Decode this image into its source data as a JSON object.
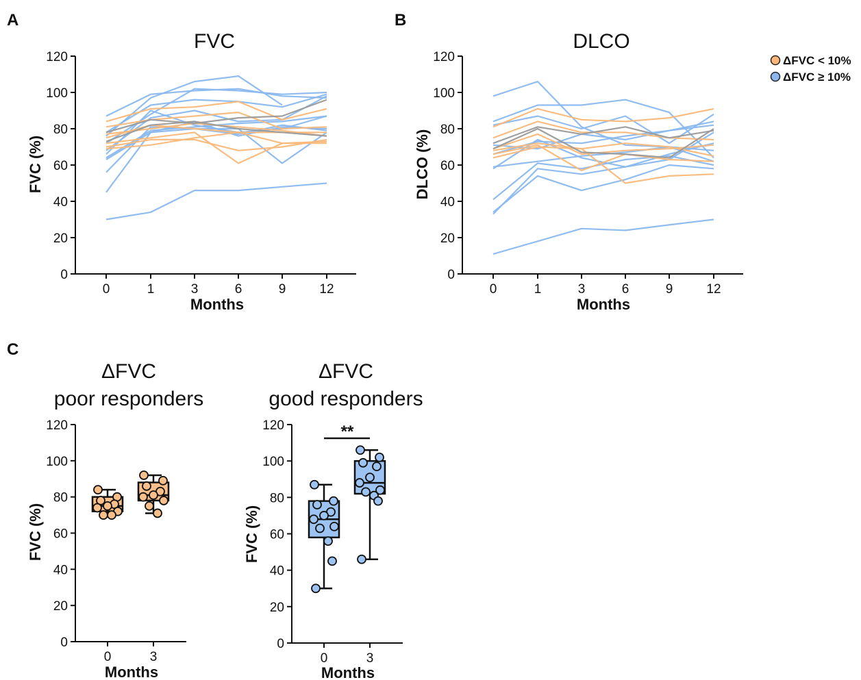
{
  "colors": {
    "poor": "#f9b87a",
    "good": "#8ab8ee",
    "grey": "#9a9a9a",
    "poor_fill": "#f9bf8a",
    "good_fill": "#9cc3f2"
  },
  "legend": [
    {
      "label": "ΔFVC < 10%",
      "color": "#f9b87a"
    },
    {
      "label": "ΔFVC ≥ 10%",
      "color": "#8ab8ee"
    }
  ],
  "chart_data": [
    {
      "panel": "A",
      "type": "line",
      "title": "FVC",
      "xlabel": "Months",
      "ylabel": "FVC (%)",
      "x": [
        "0",
        "1",
        "3",
        "6",
        "9",
        "12"
      ],
      "ylim": [
        0,
        120
      ],
      "yticks": [
        "0",
        "20",
        "40",
        "60",
        "80",
        "100",
        "120"
      ],
      "series": [
        {
          "group": "good",
          "values": [
            87,
            99,
            101,
            102,
            98,
            97
          ]
        },
        {
          "group": "good",
          "values": [
            78,
            93,
            96,
            95,
            92,
            99
          ]
        },
        {
          "group": "good",
          "values": [
            76,
            97,
            106,
            109,
            93,
            null
          ]
        },
        {
          "group": "good",
          "values": [
            72,
            88,
            102,
            101,
            99,
            100
          ]
        },
        {
          "group": "good",
          "values": [
            68,
            86,
            90,
            84,
            85,
            98
          ]
        },
        {
          "group": "good",
          "values": [
            66,
            90,
            82,
            78,
            80,
            87
          ]
        },
        {
          "group": "good",
          "values": [
            64,
            79,
            81,
            83,
            84,
            87
          ]
        },
        {
          "group": "good",
          "values": [
            63,
            78,
            80,
            80,
            61,
            78
          ]
        },
        {
          "group": "good",
          "values": [
            56,
            81,
            80,
            77,
            82,
            79
          ]
        },
        {
          "group": "good",
          "values": [
            45,
            78,
            84,
            76,
            81,
            80
          ]
        },
        {
          "group": "good",
          "values": [
            30,
            34,
            46,
            46,
            48,
            50
          ]
        },
        {
          "group": "poor",
          "values": [
            84,
            91,
            92,
            95,
            85,
            91
          ]
        },
        {
          "group": "poor",
          "values": [
            81,
            85,
            87,
            89,
            80,
            81
          ]
        },
        {
          "group": "poor",
          "values": [
            77,
            80,
            83,
            81,
            79,
            76
          ]
        },
        {
          "group": "poor",
          "values": [
            75,
            82,
            80,
            78,
            78,
            78
          ]
        },
        {
          "group": "poor",
          "values": [
            72,
            75,
            78,
            61,
            72,
            72
          ]
        },
        {
          "group": "poor",
          "values": [
            70,
            74,
            74,
            68,
            70,
            74
          ]
        },
        {
          "group": "poor",
          "values": [
            69,
            71,
            75,
            78,
            72,
            73
          ]
        },
        {
          "group": "grey",
          "values": [
            78,
            85,
            83,
            86,
            87,
            96
          ]
        },
        {
          "group": "grey",
          "values": [
            73,
            82,
            84,
            80,
            78,
            76
          ]
        }
      ]
    },
    {
      "panel": "B",
      "type": "line",
      "title": "DLCO",
      "xlabel": "Months",
      "ylabel": "DLCO (%)",
      "x": [
        "0",
        "1",
        "3",
        "6",
        "9",
        "12"
      ],
      "ylim": [
        0,
        120
      ],
      "yticks": [
        "0",
        "20",
        "40",
        "60",
        "80",
        "100",
        "120"
      ],
      "series": [
        {
          "group": "good",
          "values": [
            98,
            106,
            81,
            71,
            70,
            62
          ]
        },
        {
          "group": "good",
          "values": [
            84,
            93,
            93,
            96,
            89,
            64
          ]
        },
        {
          "group": "good",
          "values": [
            82,
            87,
            80,
            87,
            72,
            88
          ]
        },
        {
          "group": "good",
          "values": [
            71,
            69,
            77,
            74,
            79,
            82
          ]
        },
        {
          "group": "good",
          "values": [
            66,
            73,
            72,
            76,
            79,
            84
          ]
        },
        {
          "group": "good",
          "values": [
            59,
            62,
            65,
            67,
            70,
            68
          ]
        },
        {
          "group": "good",
          "values": [
            58,
            74,
            64,
            59,
            66,
            72
          ]
        },
        {
          "group": "good",
          "values": [
            41,
            61,
            58,
            63,
            65,
            60
          ]
        },
        {
          "group": "good",
          "values": [
            34,
            54,
            46,
            52,
            60,
            58
          ]
        },
        {
          "group": "good",
          "values": [
            33,
            58,
            55,
            59,
            63,
            78
          ]
        },
        {
          "group": "good",
          "values": [
            11,
            18,
            25,
            24,
            27,
            30
          ]
        },
        {
          "group": "poor",
          "values": [
            81,
            91,
            85,
            84,
            86,
            91
          ]
        },
        {
          "group": "poor",
          "values": [
            75,
            84,
            78,
            78,
            75,
            74
          ]
        },
        {
          "group": "poor",
          "values": [
            69,
            77,
            66,
            68,
            69,
            71
          ]
        },
        {
          "group": "poor",
          "values": [
            68,
            72,
            69,
            72,
            70,
            65
          ]
        },
        {
          "group": "poor",
          "values": [
            66,
            71,
            57,
            66,
            63,
            62
          ]
        },
        {
          "group": "poor",
          "values": [
            64,
            70,
            69,
            50,
            54,
            55
          ]
        },
        {
          "group": "grey",
          "values": [
            72,
            81,
            77,
            81,
            75,
            79
          ]
        },
        {
          "group": "grey",
          "values": [
            69,
            80,
            67,
            66,
            64,
            80
          ]
        }
      ]
    },
    {
      "panel": "C",
      "type": "box",
      "title": [
        "ΔFVC",
        "poor responders"
      ],
      "xlabel": "Months",
      "ylabel": "FVC (%)",
      "categories": [
        "0",
        "3"
      ],
      "ylim": [
        0,
        120
      ],
      "yticks": [
        "0",
        "20",
        "40",
        "60",
        "80",
        "100",
        "120"
      ],
      "group": "poor",
      "boxes": [
        {
          "min": 70,
          "q1": 72,
          "median": 75,
          "q3": 80,
          "max": 84,
          "points": [
            84,
            80,
            78,
            76,
            75,
            74,
            72,
            70,
            70
          ]
        },
        {
          "min": 71,
          "q1": 78,
          "median": 81,
          "q3": 88,
          "max": 92,
          "points": [
            92,
            89,
            86,
            83,
            81,
            80,
            78,
            75,
            71
          ]
        }
      ]
    },
    {
      "panel": "C",
      "type": "box",
      "title": [
        "ΔFVC",
        "good responders"
      ],
      "xlabel": "Months",
      "ylabel": "FVC (%)",
      "categories": [
        "0",
        "3"
      ],
      "ylim": [
        0,
        120
      ],
      "yticks": [
        "0",
        "20",
        "40",
        "60",
        "80",
        "100",
        "120"
      ],
      "group": "good",
      "significance": "**",
      "boxes": [
        {
          "min": 30,
          "q1": 58,
          "median": 68,
          "q3": 78,
          "max": 87,
          "points": [
            87,
            78,
            76,
            72,
            70,
            68,
            64,
            63,
            56,
            45,
            30
          ]
        },
        {
          "min": 46,
          "q1": 82,
          "median": 88,
          "q3": 100,
          "max": 106,
          "points": [
            106,
            102,
            99,
            97,
            91,
            88,
            84,
            83,
            81,
            78,
            46
          ]
        }
      ]
    }
  ],
  "panels": {
    "a": "A",
    "b": "B",
    "c": "C"
  }
}
